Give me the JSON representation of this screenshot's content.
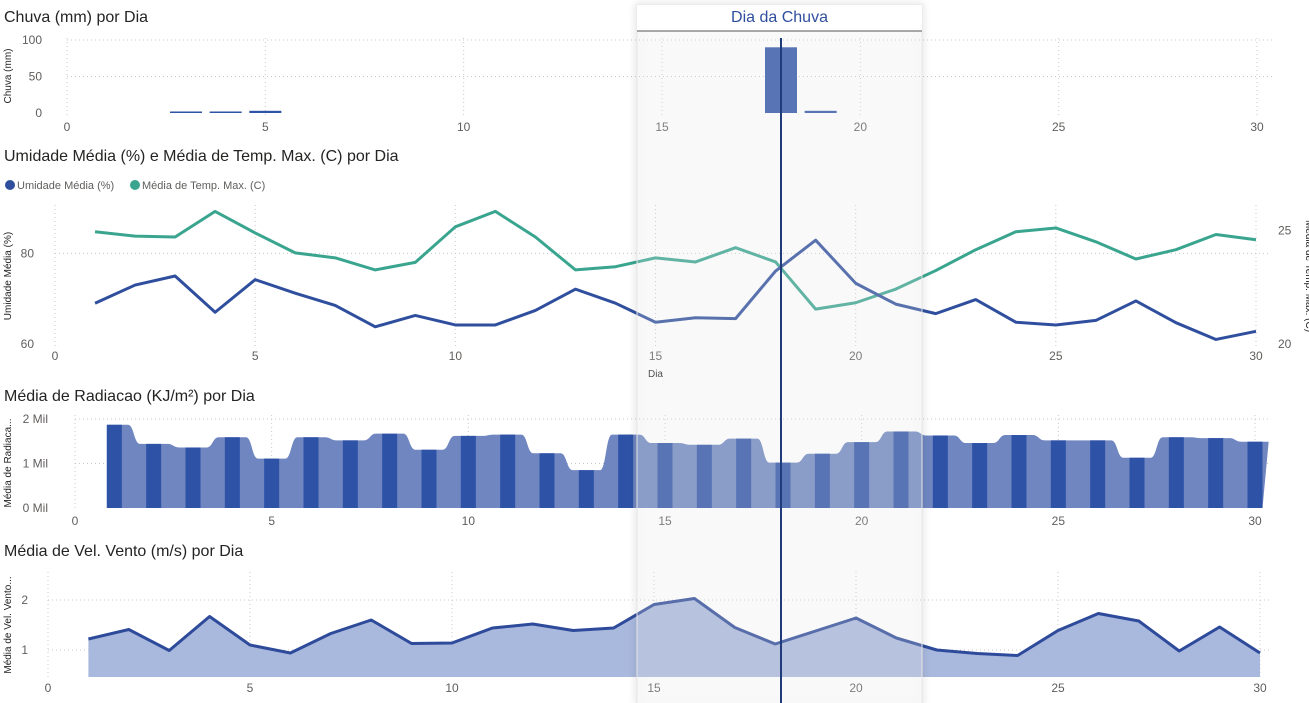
{
  "colors": {
    "humidity": "#2f4f9e",
    "temperature": "#3aa58f",
    "bar": "#2e52a6",
    "area": "#6f86c0",
    "wind_area": "#a9b8dd",
    "wind_line": "#2e4a9a",
    "reference_line": "#1f3b7a"
  },
  "highlight": {
    "label": "Dia da Chuva",
    "day": 18
  },
  "chart_data": [
    {
      "id": "rain",
      "type": "bar",
      "title": "Chuva (mm) por Dia",
      "xlabel": "",
      "ylabel": "Chuva (mm)",
      "xlim": [
        0,
        30
      ],
      "ylim": [
        0,
        100
      ],
      "xticks": [
        "0",
        "5",
        "10",
        "15",
        "20",
        "25",
        "30"
      ],
      "yticks": [
        "0",
        "50",
        "100"
      ],
      "x": [
        3,
        4,
        5,
        18,
        19
      ],
      "values": [
        1,
        1,
        3,
        90,
        3
      ]
    },
    {
      "id": "humidity_temp",
      "type": "line",
      "title": "Umidade Média (%) e Média de Temp. Max. (C) por Dia",
      "xlabel": "Dia",
      "ylabel": "Umidade Média (%)",
      "y2label": "Média de Temp. Max. (C)",
      "xlim": [
        0,
        30
      ],
      "ylim": [
        60,
        90
      ],
      "y2lim": [
        20,
        26
      ],
      "xticks": [
        "0",
        "5",
        "10",
        "15",
        "20",
        "25",
        "30"
      ],
      "yticks": [
        "60",
        "80"
      ],
      "y2ticks": [
        "20",
        "25"
      ],
      "x": [
        1,
        2,
        3,
        4,
        5,
        6,
        7,
        8,
        9,
        10,
        11,
        12,
        13,
        14,
        15,
        16,
        17,
        18,
        19,
        20,
        21,
        22,
        23,
        24,
        25,
        26,
        27,
        28,
        29,
        30
      ],
      "series": [
        {
          "name": "Umidade Média (%)",
          "axis": "left",
          "values": [
            69,
            73,
            75,
            67,
            74.2,
            71.2,
            68.5,
            63.8,
            66.3,
            64.2,
            64.2,
            67.4,
            72.1,
            69,
            64.8,
            65.8,
            65.6,
            76.1,
            82.9,
            73.4,
            68.8,
            66.7,
            69.8,
            64.8,
            64.2,
            65.2,
            69.5,
            64.7,
            61,
            62.8
          ]
        },
        {
          "name": "Média de Temp. Max. (C)",
          "axis": "right",
          "values": [
            24.95,
            24.76,
            24.72,
            25.85,
            24.9,
            24.02,
            23.8,
            23.27,
            23.6,
            25.17,
            25.85,
            24.72,
            23.27,
            23.41,
            23.8,
            23.62,
            24.25,
            23.62,
            21.54,
            21.82,
            22.42,
            23.24,
            24.16,
            24.95,
            25.12,
            24.51,
            23.75,
            24.16,
            24.83,
            24.6
          ]
        }
      ]
    },
    {
      "id": "radiation",
      "type": "bar",
      "title": "Média de Radiacao (KJ/m²) por Dia",
      "xlabel": "",
      "ylabel": "Média de Radiaca...",
      "xlim": [
        0,
        30
      ],
      "ylim": [
        0,
        2000
      ],
      "xticks": [
        "0",
        "5",
        "10",
        "15",
        "20",
        "25",
        "30"
      ],
      "yticks": [
        "0 Mil",
        "1 Mil",
        "2 Mil"
      ],
      "x": [
        1,
        2,
        3,
        4,
        5,
        6,
        7,
        8,
        9,
        10,
        11,
        12,
        13,
        14,
        15,
        16,
        17,
        18,
        19,
        20,
        21,
        22,
        23,
        24,
        25,
        26,
        27,
        28,
        29,
        30
      ],
      "values": [
        1870,
        1440,
        1360,
        1590,
        1110,
        1590,
        1520,
        1670,
        1310,
        1620,
        1650,
        1230,
        850,
        1650,
        1460,
        1420,
        1560,
        1020,
        1220,
        1480,
        1720,
        1630,
        1460,
        1640,
        1520,
        1520,
        1130,
        1590,
        1570,
        1490
      ]
    },
    {
      "id": "wind",
      "type": "area",
      "title": "Média de Vel. Vento (m/s) por Dia",
      "xlabel": "",
      "ylabel": "Média de Vel. Vento...",
      "xlim": [
        0,
        30
      ],
      "ylim": [
        0.5,
        2.5
      ],
      "xticks": [
        "0",
        "5",
        "10",
        "15",
        "20",
        "25",
        "30"
      ],
      "yticks": [
        "1",
        "2"
      ],
      "x": [
        1,
        2,
        3,
        4,
        5,
        6,
        7,
        8,
        9,
        10,
        11,
        12,
        13,
        14,
        15,
        16,
        17,
        18,
        19,
        20,
        21,
        22,
        23,
        24,
        25,
        26,
        27,
        28,
        29,
        30
      ],
      "values": [
        1.22,
        1.41,
        0.99,
        1.67,
        1.1,
        0.94,
        1.33,
        1.6,
        1.13,
        1.14,
        1.44,
        1.52,
        1.39,
        1.44,
        1.91,
        2.03,
        1.45,
        1.12,
        1.38,
        1.64,
        1.24,
        1.0,
        0.93,
        0.89,
        1.39,
        1.73,
        1.58,
        0.98,
        1.46,
        0.94
      ]
    }
  ]
}
